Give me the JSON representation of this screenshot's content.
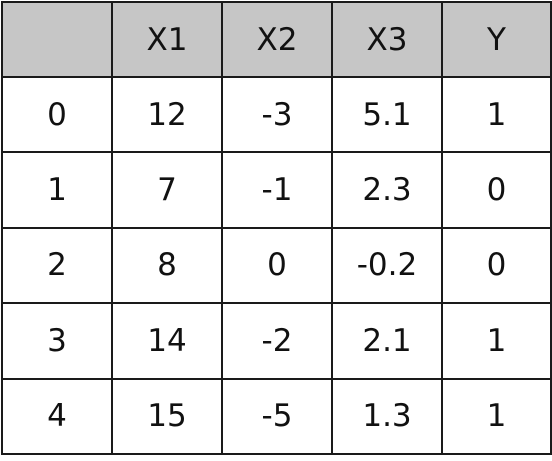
{
  "table": {
    "header_bg": "#c6c6c6",
    "columns": [
      "",
      "X1",
      "X2",
      "X3",
      "Y"
    ],
    "rows": [
      [
        "0",
        "12",
        "-3",
        "5.1",
        "1"
      ],
      [
        "1",
        "7",
        "-1",
        "2.3",
        "0"
      ],
      [
        "2",
        "8",
        "0",
        "-0.2",
        "0"
      ],
      [
        "3",
        "14",
        "-2",
        "2.1",
        "1"
      ],
      [
        "4",
        "15",
        "-5",
        "1.3",
        "1"
      ]
    ]
  }
}
